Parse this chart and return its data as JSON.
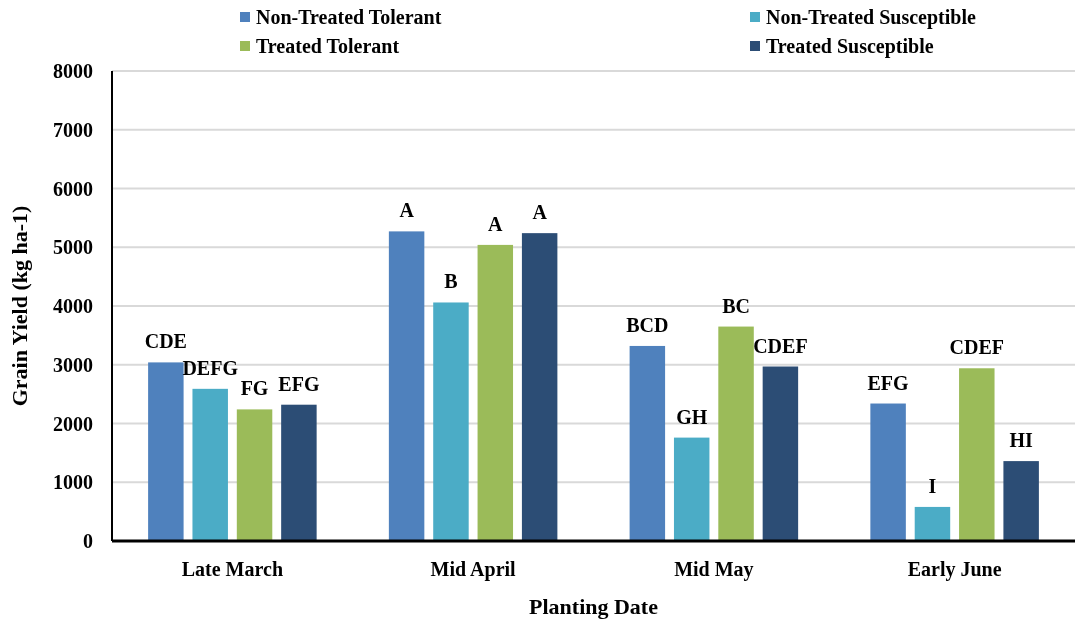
{
  "chart_data": {
    "type": "bar",
    "xlabel": "Planting Date",
    "ylabel": "Grain Yield (kg ha-1)",
    "categories": [
      "Late March",
      "Mid April",
      "Mid May",
      "Early June"
    ],
    "series": [
      {
        "name": "Non-Treated Tolerant",
        "color": "#4f81bd",
        "values": [
          3040,
          5270,
          3320,
          2340
        ],
        "value_labels": [
          "CDE",
          "A",
          "BCD",
          "EFG"
        ]
      },
      {
        "name": "Non-Treated Susceptible",
        "color": "#4bacc6",
        "values": [
          2590,
          4060,
          1760,
          580
        ],
        "value_labels": [
          "DEFG",
          "B",
          "GH",
          "I"
        ]
      },
      {
        "name": "Treated Tolerant",
        "color": "#9bbb59",
        "values": [
          2240,
          5040,
          3650,
          2940
        ],
        "value_labels": [
          "FG",
          "A",
          "BC",
          "CDEF"
        ]
      },
      {
        "name": "Treated Susceptible",
        "color": "#2c4d75",
        "values": [
          2320,
          5240,
          2970,
          1360
        ],
        "value_labels": [
          "EFG",
          "A",
          "CDEF",
          "HI"
        ]
      }
    ],
    "ylim": [
      0,
      8000
    ],
    "yticks": [
      0,
      1000,
      2000,
      3000,
      4000,
      5000,
      6000,
      7000,
      8000
    ],
    "grid": "y",
    "legend": "top"
  }
}
